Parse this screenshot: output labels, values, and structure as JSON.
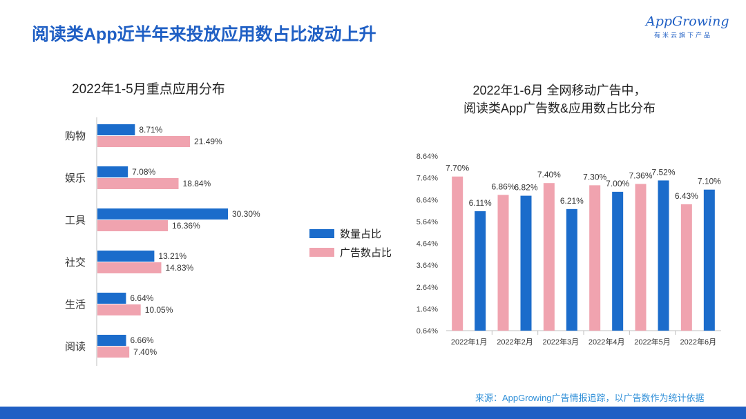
{
  "page": {
    "title": "阅读类App近半年来投放应用数占比波动上升",
    "source": "来源：AppGrowing广告情报追踪，以广告数作为统计依据",
    "logo_text": "AppGrowing",
    "logo_tagline": "有米云旗下产品"
  },
  "colors": {
    "blue": "#1b6ccb",
    "pink": "#f0a3af",
    "title_blue": "#1f5fc4"
  },
  "legend": [
    {
      "label": "数量占比",
      "color": "#1b6ccb"
    },
    {
      "label": "广告数占比",
      "color": "#f0a3af"
    }
  ],
  "chart_data": [
    {
      "type": "bar",
      "orientation": "horizontal",
      "title": "2022年1-5月重点应用分布",
      "categories": [
        "购物",
        "娱乐",
        "工具",
        "社交",
        "生活",
        "阅读"
      ],
      "series": [
        {
          "name": "数量占比",
          "values": [
            8.71,
            7.08,
            30.3,
            13.21,
            6.64,
            6.66
          ],
          "labels": [
            "8.71%",
            "7.08%",
            "30.30%",
            "13.21%",
            "6.64%",
            "6.66%"
          ]
        },
        {
          "name": "广告数占比",
          "values": [
            21.49,
            18.84,
            16.36,
            14.83,
            10.05,
            7.4
          ],
          "labels": [
            "21.49%",
            "18.84%",
            "16.36%",
            "14.83%",
            "10.05%",
            "7.40%"
          ]
        }
      ],
      "xlim": [
        0,
        40
      ]
    },
    {
      "type": "bar",
      "title": "2022年1-6月 全网移动广告中，阅读类App广告数&应用数占比分布",
      "title_lines": [
        "2022年1-6月 全网移动广告中，",
        "阅读类App广告数&应用数占比分布"
      ],
      "categories": [
        "2022年1月",
        "2022年2月",
        "2022年3月",
        "2022年4月",
        "2022年5月",
        "2022年6月"
      ],
      "series": [
        {
          "name": "广告数占比",
          "values": [
            7.7,
            6.86,
            7.4,
            7.3,
            7.36,
            6.43
          ],
          "labels": [
            "7.70%",
            "6.86%",
            "7.40%",
            "7.30%",
            "7.36%",
            "6.43%"
          ]
        },
        {
          "name": "数量占比",
          "values": [
            6.11,
            6.82,
            6.21,
            7.0,
            7.52,
            7.1
          ],
          "labels": [
            "6.11%",
            "6.82%",
            "6.21%",
            "7.00%",
            "7.52%",
            "7.10%"
          ]
        }
      ],
      "yticks": [
        "8.64%",
        "7.64%",
        "6.64%",
        "5.64%",
        "4.64%",
        "3.64%",
        "2.64%",
        "1.64%",
        "0.64%"
      ],
      "ylim": [
        0.64,
        8.64
      ],
      "grid": false
    }
  ]
}
